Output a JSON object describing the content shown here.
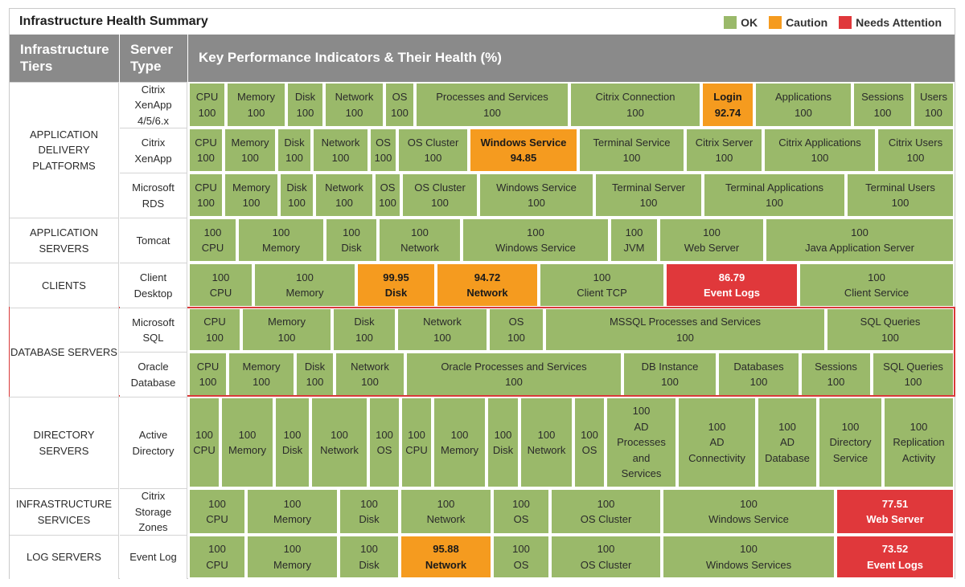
{
  "header": {
    "title": "Infrastructure Health Summary",
    "legend": [
      {
        "label": "OK",
        "color": "#9ab96a"
      },
      {
        "label": "Caution",
        "color": "#f59b1f"
      },
      {
        "label": "Needs Attention",
        "color": "#e0383b"
      }
    ]
  },
  "columns": {
    "tiers": "Infrastructure\nTiers",
    "server_type": "Server\nType",
    "kpis": "Key Performance Indicators & Their Health (%)"
  },
  "colors": {
    "ok": "#9ab96a",
    "caution": "#f59b1f",
    "attention": "#e0383b",
    "header": "#8a8a8a",
    "highlight": "#d93a3a"
  },
  "tiers": [
    {
      "label": "APPLICATION\nDELIVERY\nPLATFORMS",
      "rows": 3
    },
    {
      "label": "APPLICATION\nSERVERS",
      "rows": 1
    },
    {
      "label": "CLIENTS",
      "rows": 1
    },
    {
      "label": "DATABASE SERVERS",
      "rows": 2
    },
    {
      "label": "DIRECTORY\nSERVERS",
      "rows": 1
    },
    {
      "label": "INFRASTRUCTURE\nSERVICES",
      "rows": 1
    },
    {
      "label": "LOG SERVERS",
      "rows": 1
    }
  ],
  "rows": [
    {
      "server_type": "Citrix\nXenApp\n4/5/6.x",
      "order": "nv",
      "cells": [
        {
          "name": "CPU",
          "value": "100",
          "status": "ok",
          "w": 1
        },
        {
          "name": "Memory",
          "value": "100",
          "status": "ok",
          "w": 1.6
        },
        {
          "name": "Disk",
          "value": "100",
          "status": "ok",
          "w": 1
        },
        {
          "name": "Network",
          "value": "100",
          "status": "ok",
          "w": 1.6
        },
        {
          "name": "OS",
          "value": "100",
          "status": "ok",
          "w": 0.8
        },
        {
          "name": "Processes and Services",
          "value": "100",
          "status": "ok",
          "w": 4.1
        },
        {
          "name": "Citrix Connection",
          "value": "100",
          "status": "ok",
          "w": 3.5
        },
        {
          "name": "Login",
          "value": "92.74",
          "status": "caution",
          "w": 1.4
        },
        {
          "name": "Applications",
          "value": "100",
          "status": "ok",
          "w": 2.6
        },
        {
          "name": "Sessions",
          "value": "100",
          "status": "ok",
          "w": 1.6
        },
        {
          "name": "Users",
          "value": "100",
          "status": "ok",
          "w": 1.1
        }
      ]
    },
    {
      "server_type": "Citrix\nXenApp",
      "order": "nv",
      "cells": [
        {
          "name": "CPU",
          "value": "100",
          "status": "ok",
          "w": 1
        },
        {
          "name": "Memory",
          "value": "100",
          "status": "ok",
          "w": 1.5
        },
        {
          "name": "Disk",
          "value": "100",
          "status": "ok",
          "w": 1
        },
        {
          "name": "Network",
          "value": "100",
          "status": "ok",
          "w": 1.6
        },
        {
          "name": "OS",
          "value": "100",
          "status": "ok",
          "w": 0.8
        },
        {
          "name": "OS Cluster",
          "value": "100",
          "status": "ok",
          "w": 2
        },
        {
          "name": "Windows Service",
          "value": "94.85",
          "status": "caution",
          "w": 3.1
        },
        {
          "name": "Terminal Service",
          "value": "100",
          "status": "ok",
          "w": 3
        },
        {
          "name": "Citrix Server",
          "value": "100",
          "status": "ok",
          "w": 2.2
        },
        {
          "name": "Citrix Applications",
          "value": "100",
          "status": "ok",
          "w": 3.2
        },
        {
          "name": "Citrix Users",
          "value": "100",
          "status": "ok",
          "w": 2.2
        }
      ]
    },
    {
      "server_type": "Microsoft\nRDS",
      "order": "nv",
      "cells": [
        {
          "name": "CPU",
          "value": "100",
          "status": "ok",
          "w": 1
        },
        {
          "name": "Memory",
          "value": "100",
          "status": "ok",
          "w": 1.6
        },
        {
          "name": "Disk",
          "value": "100",
          "status": "ok",
          "w": 1
        },
        {
          "name": "Network",
          "value": "100",
          "status": "ok",
          "w": 1.7
        },
        {
          "name": "OS",
          "value": "100",
          "status": "ok",
          "w": 0.8
        },
        {
          "name": "OS Cluster",
          "value": "100",
          "status": "ok",
          "w": 2.2
        },
        {
          "name": "Windows Service",
          "value": "100",
          "status": "ok",
          "w": 3.3
        },
        {
          "name": "Terminal Server",
          "value": "100",
          "status": "ok",
          "w": 3.1
        },
        {
          "name": "Terminal Applications",
          "value": "100",
          "status": "ok",
          "w": 4.1
        },
        {
          "name": "Terminal Users",
          "value": "100",
          "status": "ok",
          "w": 3.1
        }
      ]
    },
    {
      "server_type": "Tomcat",
      "order": "vn",
      "cells": [
        {
          "name": "CPU",
          "value": "100",
          "status": "ok",
          "w": 1.3
        },
        {
          "name": "Memory",
          "value": "100",
          "status": "ok",
          "w": 2.3
        },
        {
          "name": "Disk",
          "value": "100",
          "status": "ok",
          "w": 1.4
        },
        {
          "name": "Network",
          "value": "100",
          "status": "ok",
          "w": 2.2
        },
        {
          "name": "Windows Service",
          "value": "100",
          "status": "ok",
          "w": 3.9
        },
        {
          "name": "JVM",
          "value": "100",
          "status": "ok",
          "w": 1.3
        },
        {
          "name": "Web Server",
          "value": "100",
          "status": "ok",
          "w": 2.8
        },
        {
          "name": "Java Application Server",
          "value": "100",
          "status": "ok",
          "w": 5
        }
      ]
    },
    {
      "server_type": "Client\nDesktop",
      "order": "vn",
      "cells": [
        {
          "name": "CPU",
          "value": "100",
          "status": "ok",
          "w": 1.7
        },
        {
          "name": "Memory",
          "value": "100",
          "status": "ok",
          "w": 2.7
        },
        {
          "name": "Disk",
          "value": "99.95",
          "status": "caution",
          "w": 2.1
        },
        {
          "name": "Network",
          "value": "94.72",
          "status": "caution",
          "w": 2.7
        },
        {
          "name": "Client TCP",
          "value": "100",
          "status": "ok",
          "w": 3.3
        },
        {
          "name": "Event Logs",
          "value": "86.79",
          "status": "attention",
          "w": 3.5
        },
        {
          "name": "Client Service",
          "value": "100",
          "status": "ok",
          "w": 4.1
        }
      ]
    },
    {
      "server_type": "Microsoft\nSQL",
      "order": "nv",
      "cells": [
        {
          "name": "CPU",
          "value": "100",
          "status": "ok",
          "w": 1.4
        },
        {
          "name": "Memory",
          "value": "100",
          "status": "ok",
          "w": 2.4
        },
        {
          "name": "Disk",
          "value": "100",
          "status": "ok",
          "w": 1.7
        },
        {
          "name": "Network",
          "value": "100",
          "status": "ok",
          "w": 2.4
        },
        {
          "name": "OS",
          "value": "100",
          "status": "ok",
          "w": 1.5
        },
        {
          "name": "MSSQL Processes and Services",
          "value": "100",
          "status": "ok",
          "w": 7.4
        },
        {
          "name": "SQL Queries",
          "value": "100",
          "status": "ok",
          "w": 3.4
        }
      ]
    },
    {
      "server_type": "Oracle\nDatabase",
      "order": "nv",
      "cells": [
        {
          "name": "CPU",
          "value": "100",
          "status": "ok",
          "w": 1
        },
        {
          "name": "Memory",
          "value": "100",
          "status": "ok",
          "w": 1.7
        },
        {
          "name": "Disk",
          "value": "100",
          "status": "ok",
          "w": 1
        },
        {
          "name": "Network",
          "value": "100",
          "status": "ok",
          "w": 1.8
        },
        {
          "name": "Oracle Processes and Services",
          "value": "100",
          "status": "ok",
          "w": 5.5
        },
        {
          "name": "DB Instance",
          "value": "100",
          "status": "ok",
          "w": 2.4
        },
        {
          "name": "Databases",
          "value": "100",
          "status": "ok",
          "w": 2.1
        },
        {
          "name": "Sessions",
          "value": "100",
          "status": "ok",
          "w": 1.8
        },
        {
          "name": "SQL Queries",
          "value": "100",
          "status": "ok",
          "w": 2.1
        }
      ]
    },
    {
      "server_type": "Active\nDirectory",
      "order": "vn",
      "cells": [
        {
          "name": "CPU",
          "value": "100",
          "status": "ok",
          "w": 0.9
        },
        {
          "name": "Memory",
          "value": "100",
          "status": "ok",
          "w": 1.5
        },
        {
          "name": "Disk",
          "value": "100",
          "status": "ok",
          "w": 1
        },
        {
          "name": "Network",
          "value": "100",
          "status": "ok",
          "w": 1.6
        },
        {
          "name": "OS",
          "value": "100",
          "status": "ok",
          "w": 0.9
        },
        {
          "name": "CPU",
          "value": "100",
          "status": "ok",
          "w": 0.9
        },
        {
          "name": "Memory",
          "value": "100",
          "status": "ok",
          "w": 1.5
        },
        {
          "name": "Disk",
          "value": "100",
          "status": "ok",
          "w": 0.9
        },
        {
          "name": "Network",
          "value": "100",
          "status": "ok",
          "w": 1.5
        },
        {
          "name": "OS",
          "value": "100",
          "status": "ok",
          "w": 0.9
        },
        {
          "name": "AD\nProcesses\nand\nServices",
          "value": "100",
          "status": "ok",
          "w": 2
        },
        {
          "name": "AD\nConnectivity",
          "value": "100",
          "status": "ok",
          "w": 2.2
        },
        {
          "name": "AD\nDatabase",
          "value": "100",
          "status": "ok",
          "w": 1.7
        },
        {
          "name": "Directory\nService",
          "value": "100",
          "status": "ok",
          "w": 1.8
        },
        {
          "name": "Replication\nActivity",
          "value": "100",
          "status": "ok",
          "w": 2
        }
      ]
    },
    {
      "server_type": "Citrix\nStorage\nZones",
      "order": "vn",
      "cells": [
        {
          "name": "CPU",
          "value": "100",
          "status": "ok",
          "w": 1.5
        },
        {
          "name": "Memory",
          "value": "100",
          "status": "ok",
          "w": 2.4
        },
        {
          "name": "Disk",
          "value": "100",
          "status": "ok",
          "w": 1.6
        },
        {
          "name": "Network",
          "value": "100",
          "status": "ok",
          "w": 2.4
        },
        {
          "name": "OS",
          "value": "100",
          "status": "ok",
          "w": 1.5
        },
        {
          "name": "OS Cluster",
          "value": "100",
          "status": "ok",
          "w": 2.9
        },
        {
          "name": "Windows Service",
          "value": "100",
          "status": "ok",
          "w": 4.5
        },
        {
          "name": "Web Server",
          "value": "77.51",
          "status": "attention",
          "w": 3.1
        }
      ]
    },
    {
      "server_type": "Event Log",
      "order": "vn",
      "cells": [
        {
          "name": "CPU",
          "value": "100",
          "status": "ok",
          "w": 1.5
        },
        {
          "name": "Memory",
          "value": "100",
          "status": "ok",
          "w": 2.4
        },
        {
          "name": "Disk",
          "value": "100",
          "status": "ok",
          "w": 1.6
        },
        {
          "name": "Network",
          "value": "95.88",
          "status": "caution",
          "w": 2.4
        },
        {
          "name": "OS",
          "value": "100",
          "status": "ok",
          "w": 1.5
        },
        {
          "name": "OS Cluster",
          "value": "100",
          "status": "ok",
          "w": 2.9
        },
        {
          "name": "Windows Services",
          "value": "100",
          "status": "ok",
          "w": 4.5
        },
        {
          "name": "Event Logs",
          "value": "73.52",
          "status": "attention",
          "w": 3.1
        }
      ]
    }
  ]
}
